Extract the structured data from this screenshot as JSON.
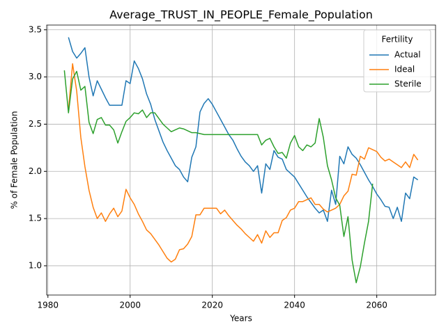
{
  "chart_data": {
    "type": "line",
    "title": "Average_TRUST_IN_PEOPLE_Female_Population",
    "xlabel": "Years",
    "ylabel": "% of Female Population",
    "legend_title": "Fertility",
    "legend": "upper right",
    "grid": true,
    "xlim": [
      1979.7,
      2074.3
    ],
    "ylim": [
      0.69,
      3.55
    ],
    "xticks": [
      1980,
      2000,
      2020,
      2040,
      2060
    ],
    "yticks": [
      {
        "value": 1,
        "label": "1.0"
      },
      {
        "value": 1.5,
        "label": "1.5"
      },
      {
        "value": 2,
        "label": "2.0"
      },
      {
        "value": 2.5,
        "label": "2.5"
      },
      {
        "value": 3,
        "label": "3.0"
      },
      {
        "value": 3.5,
        "label": "3.5"
      }
    ],
    "x": [
      1984,
      1985,
      1986,
      1987,
      1988,
      1989,
      1990,
      1991,
      1992,
      1993,
      1994,
      1995,
      1996,
      1997,
      1998,
      1999,
      2000,
      2001,
      2002,
      2003,
      2004,
      2005,
      2006,
      2007,
      2008,
      2009,
      2010,
      2011,
      2012,
      2013,
      2014,
      2015,
      2016,
      2017,
      2018,
      2019,
      2020,
      2021,
      2022,
      2023,
      2024,
      2025,
      2026,
      2027,
      2028,
      2029,
      2030,
      2031,
      2032,
      2033,
      2034,
      2035,
      2036,
      2037,
      2038,
      2039,
      2040,
      2041,
      2042,
      2043,
      2044,
      2045,
      2046,
      2047,
      2048,
      2049,
      2050,
      2051,
      2052,
      2053,
      2054,
      2055,
      2056,
      2057,
      2058,
      2059,
      2060,
      2061,
      2062,
      2063,
      2064,
      2065,
      2066,
      2067,
      2068,
      2069,
      2070
    ],
    "series": [
      {
        "name": "Actual",
        "color": "#1f77b4",
        "values": [
          null,
          3.42,
          3.27,
          3.2,
          3.25,
          3.31,
          3.0,
          2.8,
          2.96,
          2.87,
          2.78,
          2.7,
          2.7,
          2.7,
          2.7,
          2.96,
          2.93,
          3.17,
          3.09,
          2.98,
          2.82,
          2.71,
          2.55,
          2.43,
          2.31,
          2.22,
          2.14,
          2.06,
          2.02,
          1.94,
          1.89,
          2.15,
          2.26,
          2.63,
          2.72,
          2.77,
          2.71,
          2.63,
          2.55,
          2.47,
          2.39,
          2.33,
          2.24,
          2.16,
          2.1,
          2.06,
          2.0,
          2.06,
          1.77,
          2.08,
          2.02,
          2.22,
          2.15,
          2.13,
          2.02,
          1.98,
          1.94,
          1.87,
          1.8,
          1.73,
          1.67,
          1.61,
          1.56,
          1.59,
          1.47,
          1.8,
          1.65,
          2.16,
          2.08,
          2.26,
          2.18,
          2.14,
          2.07,
          1.99,
          1.91,
          1.84,
          1.76,
          1.7,
          1.63,
          1.62,
          1.5,
          1.62,
          1.47,
          1.77,
          1.71,
          1.94,
          1.91
        ]
      },
      {
        "name": "Ideal",
        "color": "#ff7f0e",
        "values": [
          null,
          2.65,
          3.14,
          2.85,
          2.36,
          2.05,
          1.8,
          1.62,
          1.5,
          1.56,
          1.47,
          1.55,
          1.61,
          1.52,
          1.58,
          1.81,
          1.72,
          1.65,
          1.55,
          1.47,
          1.38,
          1.34,
          1.28,
          1.22,
          1.15,
          1.08,
          1.04,
          1.07,
          1.17,
          1.18,
          1.23,
          1.31,
          1.54,
          1.54,
          1.61,
          1.61,
          1.61,
          1.61,
          1.55,
          1.59,
          1.53,
          1.48,
          1.43,
          1.39,
          1.34,
          1.3,
          1.26,
          1.33,
          1.24,
          1.37,
          1.3,
          1.35,
          1.35,
          1.48,
          1.51,
          1.59,
          1.61,
          1.68,
          1.68,
          1.7,
          1.72,
          1.65,
          1.65,
          1.6,
          1.57,
          1.59,
          1.61,
          1.65,
          1.74,
          1.79,
          1.97,
          1.96,
          2.16,
          2.13,
          2.25,
          2.23,
          2.21,
          2.15,
          2.11,
          2.13,
          2.1,
          2.07,
          2.04,
          2.1,
          2.04,
          2.18,
          2.12
        ]
      },
      {
        "name": "Sterile",
        "color": "#2ca02c",
        "values": [
          3.07,
          2.62,
          2.98,
          3.06,
          2.86,
          2.9,
          2.52,
          2.4,
          2.55,
          2.57,
          2.49,
          2.49,
          2.44,
          2.3,
          2.42,
          2.53,
          2.57,
          2.62,
          2.61,
          2.65,
          2.57,
          2.62,
          2.62,
          2.56,
          2.5,
          2.46,
          2.42,
          2.44,
          2.46,
          2.45,
          2.43,
          2.41,
          2.41,
          2.4,
          2.39,
          2.39,
          2.39,
          2.39,
          2.39,
          2.39,
          2.39,
          2.39,
          2.39,
          2.39,
          2.39,
          2.39,
          2.39,
          2.39,
          2.28,
          2.33,
          2.35,
          2.26,
          2.19,
          2.2,
          2.14,
          2.3,
          2.38,
          2.26,
          2.22,
          2.28,
          2.26,
          2.3,
          2.56,
          2.36,
          2.06,
          1.91,
          1.72,
          1.64,
          1.31,
          1.52,
          1.06,
          0.82,
          0.99,
          1.24,
          1.47,
          1.87,
          null,
          null,
          null,
          null,
          null,
          null,
          null,
          null,
          null,
          null,
          null
        ]
      }
    ]
  }
}
